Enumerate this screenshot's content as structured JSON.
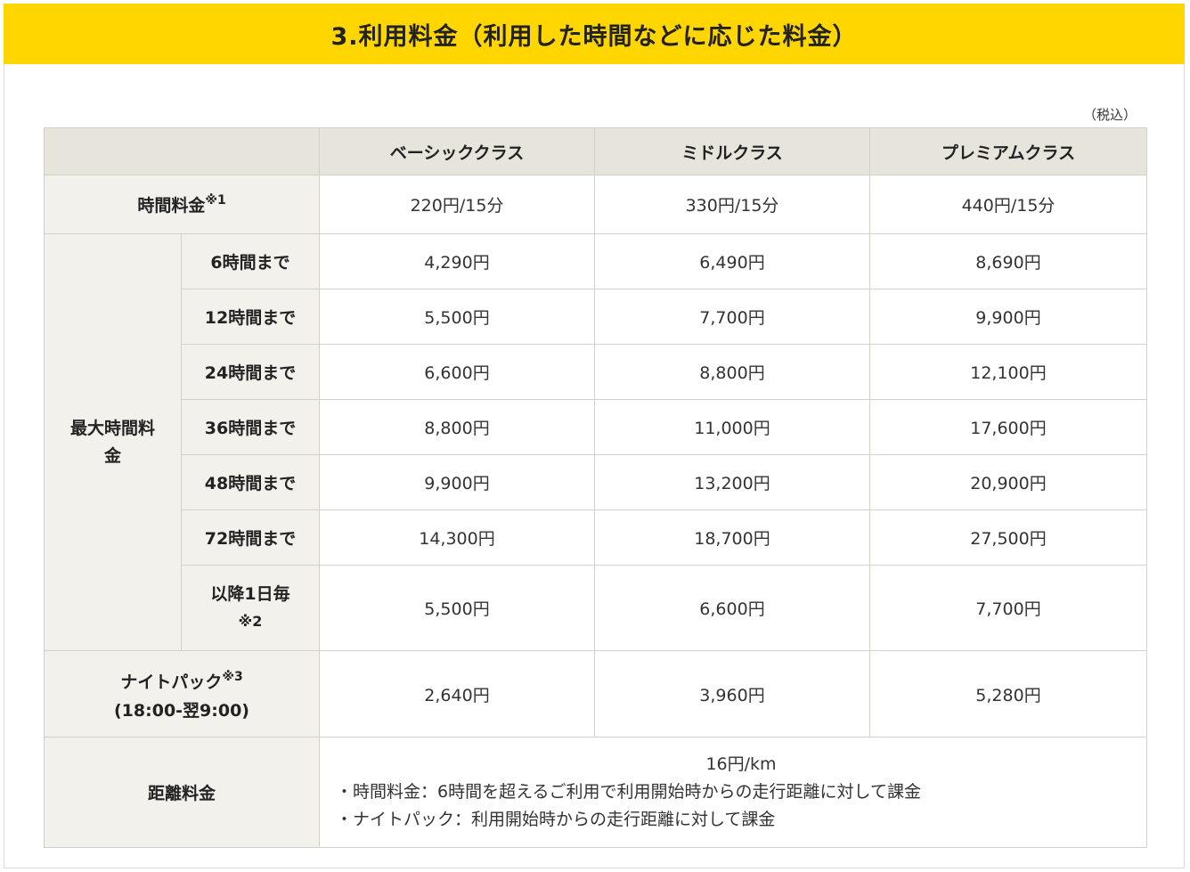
{
  "title": "3.利用料金（利用した時間などに応じた料金）",
  "tax_note": "（税込）",
  "columns": [
    "ベーシッククラス",
    "ミドルクラス",
    "プレミアムクラス"
  ],
  "time_fee": {
    "label": "時間料金",
    "note": "※1",
    "values": [
      "220円/15分",
      "330円/15分",
      "440円/15分"
    ]
  },
  "max_fee": {
    "label_line1": "最大時間料",
    "label_line2": "金",
    "rows": [
      {
        "label": "6時間まで",
        "values": [
          "4,290円",
          "6,490円",
          "8,690円"
        ]
      },
      {
        "label": "12時間まで",
        "values": [
          "5,500円",
          "7,700円",
          "9,900円"
        ]
      },
      {
        "label": "24時間まで",
        "values": [
          "6,600円",
          "8,800円",
          "12,100円"
        ]
      },
      {
        "label": "36時間まで",
        "values": [
          "8,800円",
          "11,000円",
          "17,600円"
        ]
      },
      {
        "label": "48時間まで",
        "values": [
          "9,900円",
          "13,200円",
          "20,900円"
        ]
      },
      {
        "label": "72時間まで",
        "values": [
          "14,300円",
          "18,700円",
          "27,500円"
        ]
      },
      {
        "label": "以降1日毎",
        "note": "※2",
        "values": [
          "5,500円",
          "6,600円",
          "7,700円"
        ]
      }
    ]
  },
  "night_pack": {
    "label": "ナイトパック",
    "note": "※3",
    "sub": "(18:00-翌9:00)",
    "values": [
      "2,640円",
      "3,960円",
      "5,280円"
    ]
  },
  "distance_fee": {
    "label": "距離料金",
    "value": "16円/km",
    "notes": [
      "・時間料金：6時間を超えるご利用で利用開始時からの走行距離に対して課金",
      "・ナイトパック：利用開始時からの走行距離に対して課金"
    ]
  }
}
